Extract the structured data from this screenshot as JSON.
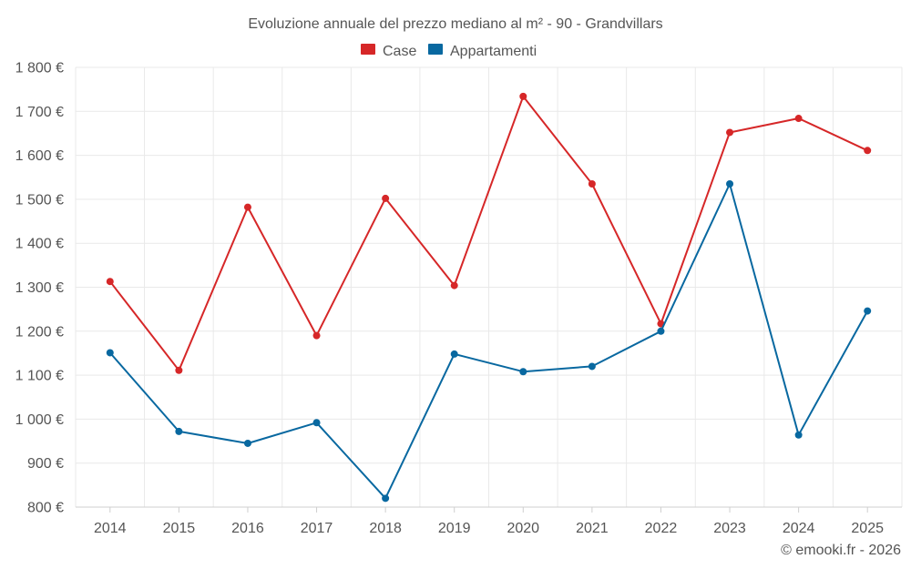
{
  "chart_data": {
    "type": "line",
    "title": "Evoluzione annuale del prezzo mediano al m² - 90 - Grandvillars",
    "xlabel": "",
    "ylabel": "",
    "categories": [
      "2014",
      "2015",
      "2016",
      "2017",
      "2018",
      "2019",
      "2020",
      "2021",
      "2022",
      "2023",
      "2024",
      "2025"
    ],
    "series": [
      {
        "name": "Case",
        "color": "#d62728",
        "values": [
          1313,
          1111,
          1482,
          1190,
          1502,
          1304,
          1734,
          1535,
          1217,
          1652,
          1684,
          1611
        ]
      },
      {
        "name": "Appartamenti",
        "color": "#0868a0",
        "values": [
          1151,
          972,
          945,
          992,
          820,
          1148,
          1108,
          1120,
          1200,
          1535,
          964,
          1246
        ]
      }
    ],
    "ylim": [
      800,
      1800
    ],
    "yticks": [
      800,
      900,
      1000,
      1100,
      1200,
      1300,
      1400,
      1500,
      1600,
      1700,
      1800
    ],
    "ytick_labels": [
      "800 €",
      "900 €",
      "1 000 €",
      "1 100 €",
      "1 200 €",
      "1 300 €",
      "1 400 €",
      "1 500 €",
      "1 600 €",
      "1 700 €",
      "1 800 €"
    ],
    "grid": true,
    "legend_position": "top-center"
  },
  "credit": "© emooki.fr - 2026"
}
